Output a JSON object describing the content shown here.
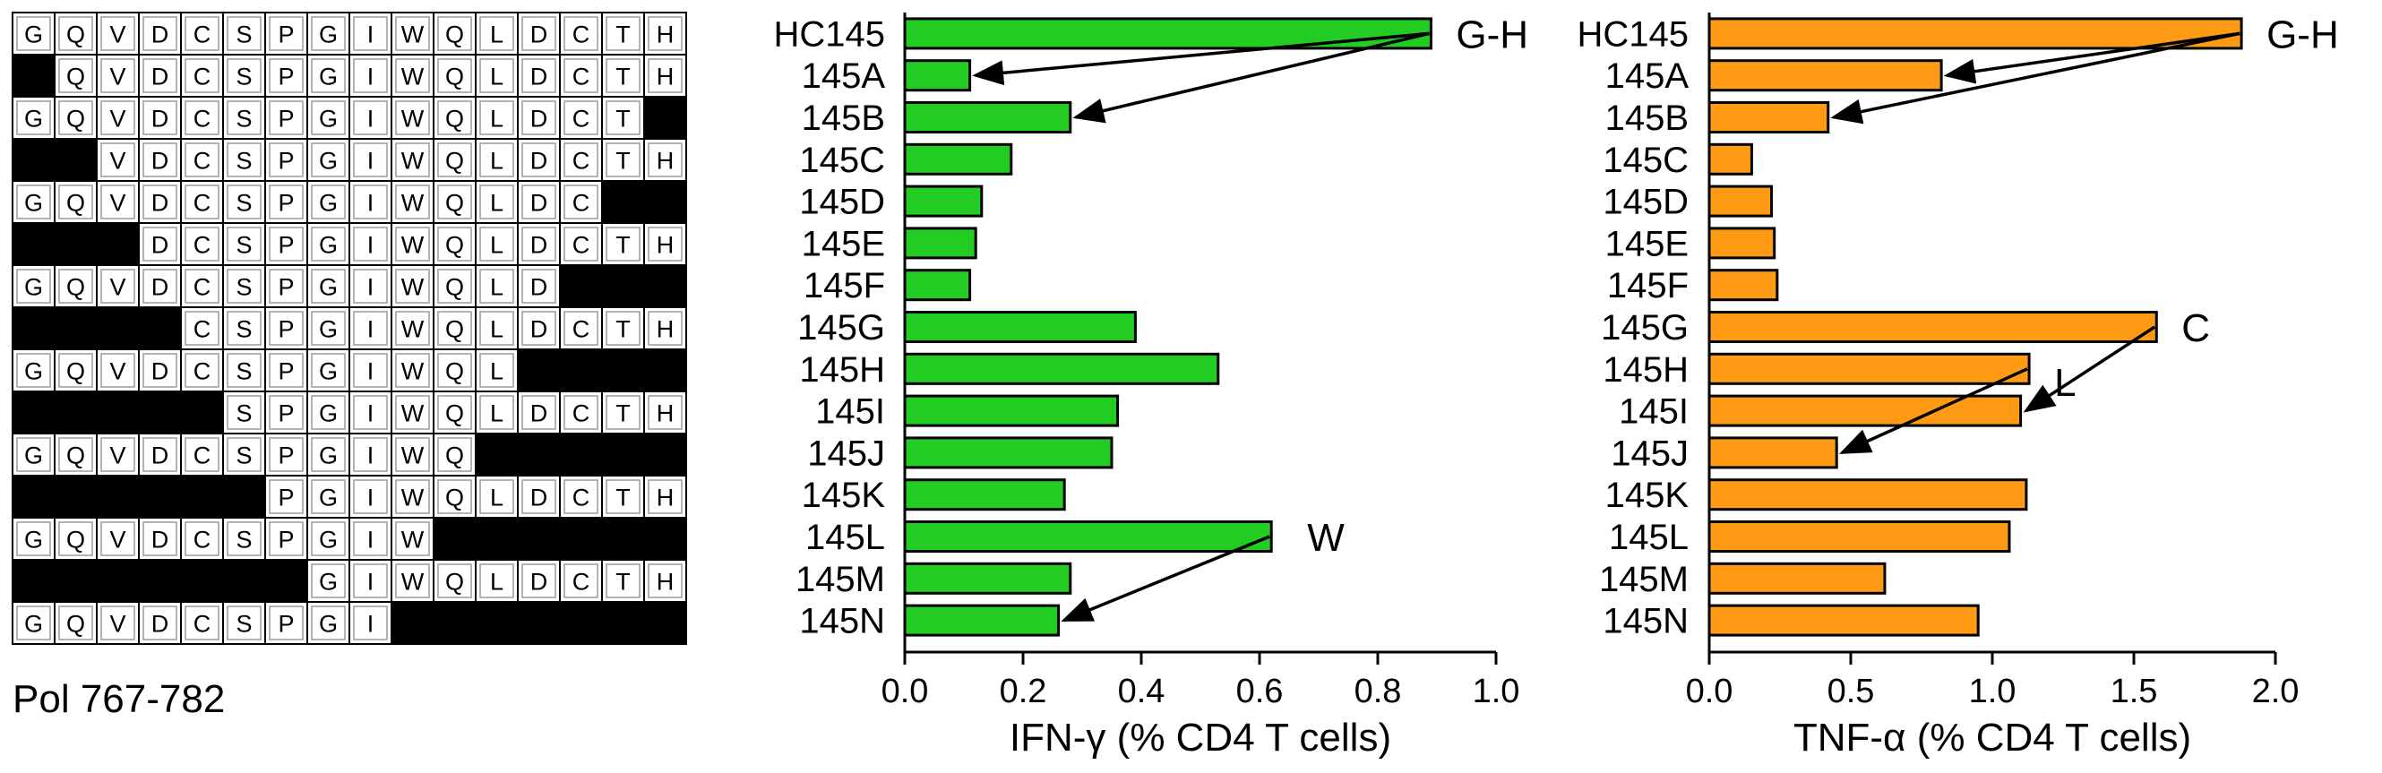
{
  "peptide_grid": {
    "residues": [
      "G",
      "Q",
      "V",
      "D",
      "C",
      "S",
      "P",
      "G",
      "I",
      "W",
      "Q",
      "L",
      "D",
      "C",
      "T",
      "H"
    ],
    "rows": [
      [
        0,
        16
      ],
      [
        1,
        16
      ],
      [
        0,
        15
      ],
      [
        2,
        16
      ],
      [
        0,
        14
      ],
      [
        3,
        16
      ],
      [
        0,
        13
      ],
      [
        4,
        16
      ],
      [
        0,
        12
      ],
      [
        5,
        16
      ],
      [
        0,
        11
      ],
      [
        6,
        16
      ],
      [
        0,
        10
      ],
      [
        7,
        16
      ],
      [
        0,
        9
      ]
    ],
    "caption": "Pol 767-782"
  },
  "chart_data": [
    {
      "type": "bar",
      "orientation": "horizontal",
      "categories": [
        "HC145",
        "145A",
        "145B",
        "145C",
        "145D",
        "145E",
        "145F",
        "145G",
        "145H",
        "145I",
        "145J",
        "145K",
        "145L",
        "145M",
        "145N"
      ],
      "values": [
        0.89,
        0.11,
        0.28,
        0.18,
        0.13,
        0.12,
        0.11,
        0.39,
        0.53,
        0.36,
        0.35,
        0.27,
        0.62,
        0.28,
        0.26
      ],
      "xlabel": "IFN-γ (% CD4 T cells)",
      "xlim": [
        0,
        1.0
      ],
      "ticks": [
        0.0,
        0.2,
        0.4,
        0.6,
        0.8,
        1.0
      ],
      "tick_labels": [
        "0.0",
        "0.2",
        "0.4",
        "0.6",
        "0.8",
        "1.0"
      ],
      "color": "#22cc22",
      "annotations": [
        {
          "text": "G-H",
          "near": "HC145"
        },
        {
          "text": "W",
          "near": "145L"
        }
      ],
      "arrows": [
        {
          "from": "HC145",
          "to": "145A"
        },
        {
          "from": "HC145",
          "to": "145B"
        },
        {
          "from": "145L",
          "to": "145N"
        }
      ]
    },
    {
      "type": "bar",
      "orientation": "horizontal",
      "categories": [
        "HC145",
        "145A",
        "145B",
        "145C",
        "145D",
        "145E",
        "145F",
        "145G",
        "145H",
        "145I",
        "145J",
        "145K",
        "145L",
        "145M",
        "145N"
      ],
      "values": [
        1.88,
        0.82,
        0.42,
        0.15,
        0.22,
        0.23,
        0.24,
        1.58,
        1.13,
        1.1,
        0.45,
        1.12,
        1.06,
        0.62,
        0.95
      ],
      "xlabel": "TNF-α (% CD4 T cells)",
      "xlim": [
        0,
        2.0
      ],
      "ticks": [
        0.0,
        0.5,
        1.0,
        1.5,
        2.0
      ],
      "tick_labels": [
        "0.0",
        "0.5",
        "1.0",
        "1.5",
        "2.0"
      ],
      "color": "#ff9a14",
      "annotations": [
        {
          "text": "G-H",
          "near": "HC145"
        },
        {
          "text": "C",
          "near": "145G"
        },
        {
          "text": "L",
          "near": "145H"
        }
      ],
      "arrows": [
        {
          "from": "HC145",
          "to": "145A"
        },
        {
          "from": "HC145",
          "to": "145B"
        },
        {
          "from": "145G",
          "to": "145I"
        },
        {
          "from": "145H",
          "to": "145J"
        }
      ]
    }
  ]
}
